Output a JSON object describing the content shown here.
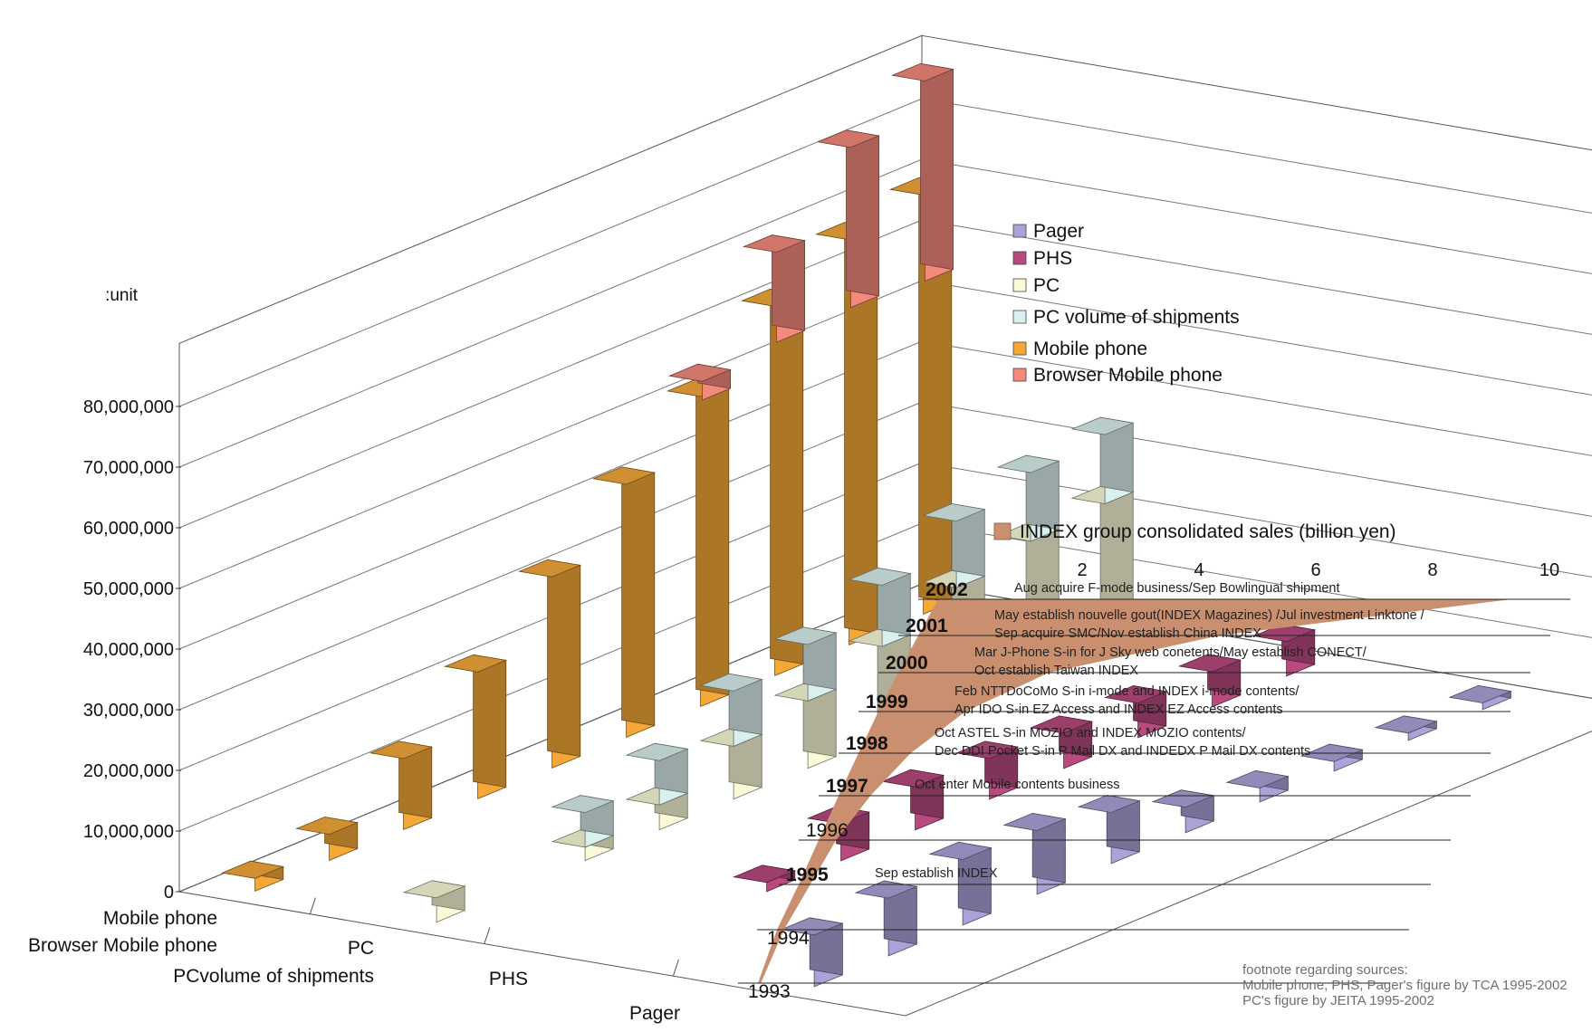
{
  "chart_data": {
    "type": "bar",
    "projection": "3d",
    "unit_label": ":unit",
    "years": [
      "1993",
      "1994",
      "1995",
      "1996",
      "1997",
      "1998",
      "1999",
      "2000",
      "2001",
      "2002"
    ],
    "yticks": [
      "0",
      "10,000,000",
      "20,000,000",
      "30,000,000",
      "40,000,000",
      "50,000,000",
      "60,000,000",
      "70,000,000",
      "80,000,000"
    ],
    "ylim": [
      0,
      80000000
    ],
    "grid": true,
    "depth_labels": [
      "Mobile phone",
      "Browser Mobile phone",
      "PC",
      "PCvolume of shipments",
      "PHS",
      "Pager"
    ],
    "legend_position": "right",
    "legend": [
      {
        "label": "Pager",
        "color": "#a9a3d8"
      },
      {
        "label": "PHS",
        "color": "#b84a80"
      },
      {
        "label": "PC",
        "color": "#fbfad8"
      },
      {
        "label": "PC volume of shipments",
        "color": "#daf0ee"
      },
      {
        "label": "Mobile phone",
        "color": "#f5a838"
      },
      {
        "label": "Browser Mobile phone",
        "color": "#f48a7c"
      }
    ],
    "series": [
      {
        "name": "Mobile phone",
        "color": "#f5a838",
        "values": [
          2100000,
          4300000,
          11700000,
          20900000,
          31500000,
          41700000,
          51100000,
          60900000,
          66800000,
          69100000
        ]
      },
      {
        "name": "Browser Mobile phone",
        "color": "#f48a7c",
        "values": [
          0,
          0,
          0,
          0,
          0,
          0,
          5600000,
          27000000,
          48000000,
          60000000
        ]
      },
      {
        "name": "PC",
        "color": "#fbfad8",
        "values": [
          4000000,
          0,
          2200000,
          4100000,
          8700000,
          11100000,
          15000000,
          19600000,
          22200000,
          23300000
        ]
      },
      {
        "name": "PC volume of shipments",
        "color": "#daf0ee",
        "values": [
          0,
          0,
          5700000,
          7300000,
          9100000,
          9300000,
          10100000,
          11000000,
          11300000,
          11400000
        ]
      },
      {
        "name": "PHS",
        "color": "#b84a80",
        "values": [
          0,
          0,
          1500000,
          6100000,
          7100000,
          6700000,
          5800000,
          5700000,
          5800000,
          5700000
        ]
      },
      {
        "name": "Pager",
        "color": "#a9a3d8",
        "values": [
          8500000,
          9500000,
          10800000,
          10500000,
          8400000,
          4200000,
          2300000,
          1600000,
          1200000,
          1100000
        ]
      }
    ],
    "sales": {
      "label": "INDEX group consolidated sales (billion yen)",
      "color": "#c98f6e",
      "ticks": [
        "2",
        "4",
        "6",
        "8",
        "10"
      ],
      "xlim": [
        0,
        10
      ],
      "values": [
        0.05,
        0.12,
        0.2,
        0.3,
        0.55,
        0.9,
        1.5,
        2.6,
        5.2,
        9.9
      ]
    },
    "events": [
      {
        "year": "1995",
        "lines": [
          "Sep establish INDEX"
        ]
      },
      {
        "year": "1997",
        "lines": [
          "Oct enter Mobile contents business"
        ]
      },
      {
        "year": "1998",
        "lines": [
          "Oct ASTEL S-in MOZIO and INDEX MOZIO contents/",
          "Dec DDI Pocket S-in P Mail DX and INDEDX P Mail DX contents"
        ]
      },
      {
        "year": "1999",
        "lines": [
          "Feb NTTDoCoMo S-in i-mode and INDEX i-mode contents/",
          "Apr IDO S-in EZ Access  and INDEX EZ Access contents"
        ]
      },
      {
        "year": "2000",
        "lines": [
          "Mar J-Phone S-in for J Sky web conetents/May establish CONECT/",
          "Oct establish Taiwan INDEX"
        ]
      },
      {
        "year": "2001",
        "lines": [
          "May establish nouvelle gout(INDEX Magazines) /Jul investment Linktone /",
          "Sep acquire SMC/Nov establish China INDEX"
        ]
      },
      {
        "year": "2002",
        "lines": [
          "Aug acquire F-mode business/Sep Bowlingual shipment"
        ]
      }
    ]
  },
  "footnote": {
    "title": "footnote regarding sources:",
    "line1": "Mobile phone, PHS, Pager's figure by TCA 1995-2002",
    "line2": "PC's figure by JEITA 1995-2002"
  }
}
